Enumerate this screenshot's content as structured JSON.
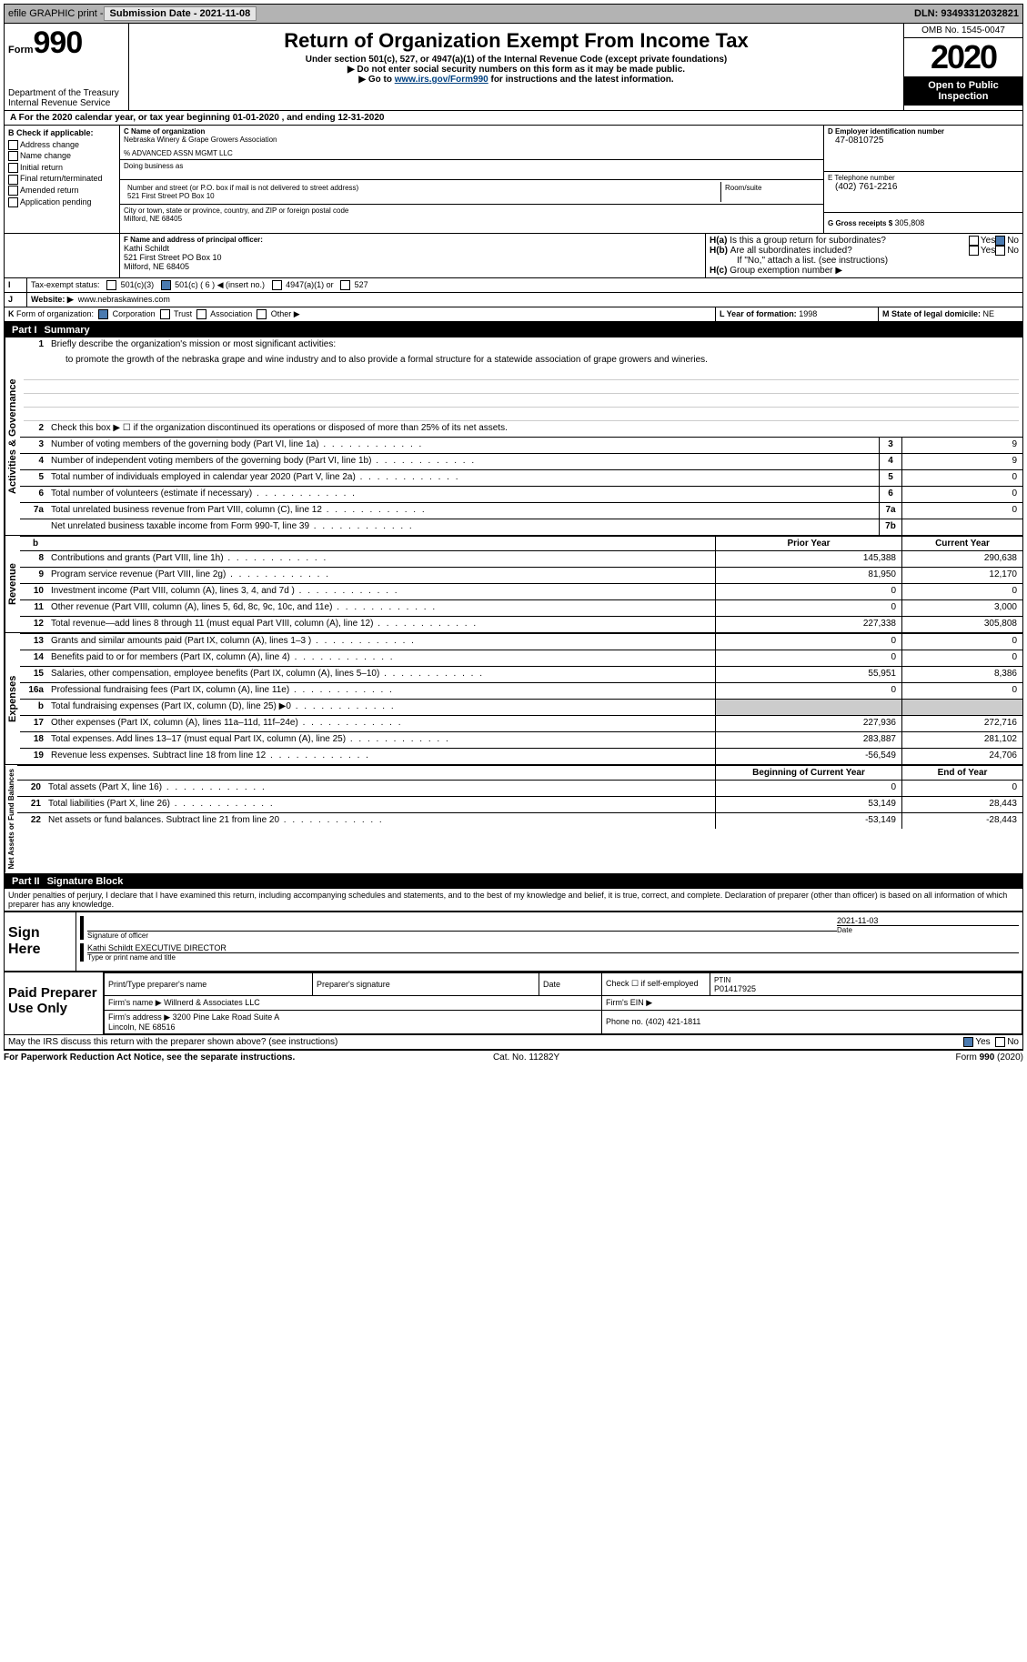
{
  "topbar": {
    "efile": "efile GRAPHIC print -",
    "submission": "Submission Date - 2021-11-08",
    "dln": "DLN: 93493312032821"
  },
  "header": {
    "form_word": "Form",
    "form_num": "990",
    "dept": "Department of the Treasury\nInternal Revenue Service",
    "title": "Return of Organization Exempt From Income Tax",
    "subtitle": "Under section 501(c), 527, or 4947(a)(1) of the Internal Revenue Code (except private foundations)",
    "note1": "▶ Do not enter social security numbers on this form as it may be made public.",
    "note2_pre": "▶ Go to ",
    "note2_link": "www.irs.gov/Form990",
    "note2_post": " for instructions and the latest information.",
    "omb": "OMB No. 1545-0047",
    "year": "2020",
    "open": "Open to Public Inspection"
  },
  "line_a": "For the 2020 calendar year, or tax year beginning 01-01-2020   , and ending 12-31-2020",
  "b": {
    "label": "B Check if applicable:",
    "opts": [
      "Address change",
      "Name change",
      "Initial return",
      "Final return/terminated",
      "Amended return",
      "Application pending"
    ]
  },
  "c": {
    "label": "C Name of organization",
    "name": "Nebraska Winery & Grape Growers Association",
    "care": "% ADVANCED ASSN MGMT LLC",
    "dba": "Doing business as",
    "street_label": "Number and street (or P.O. box if mail is not delivered to street address)",
    "street": "521 First Street PO Box 10",
    "room": "Room/suite",
    "city_label": "City or town, state or province, country, and ZIP or foreign postal code",
    "city": "Milford, NE  68405"
  },
  "d": {
    "label": "D Employer identification number",
    "val": "47-0810725"
  },
  "e": {
    "label": "E Telephone number",
    "val": "(402) 761-2216"
  },
  "g": {
    "label": "G Gross receipts $",
    "val": "305,808"
  },
  "f": {
    "label": "F  Name and address of principal officer:",
    "name": "Kathi Schildt",
    "addr1": "521 First Street PO Box 10",
    "addr2": "Milford, NE  68405"
  },
  "h": {
    "a": "Is this a group return for subordinates?",
    "b": "Are all subordinates included?",
    "b_note": "If \"No,\" attach a list. (see instructions)",
    "c": "Group exemption number ▶"
  },
  "i": {
    "label": "Tax-exempt status:",
    "opts": [
      "501(c)(3)",
      "501(c) ( 6 ) ◀ (insert no.)",
      "4947(a)(1) or",
      "527"
    ]
  },
  "j": {
    "label": "Website: ▶",
    "val": "www.nebraskawines.com"
  },
  "k": {
    "label": "Form of organization:",
    "opts": [
      "Corporation",
      "Trust",
      "Association",
      "Other ▶"
    ]
  },
  "l": {
    "label": "L Year of formation:",
    "val": "1998"
  },
  "m": {
    "label": "M State of legal domicile:",
    "val": "NE"
  },
  "part1": {
    "label": "Part I",
    "title": "Summary"
  },
  "summary": {
    "q1": "Briefly describe the organization's mission or most significant activities:",
    "mission": "to promote the growth of the nebraska grape and wine industry and to also provide a formal structure for a statewide association of grape growers and wineries.",
    "q2": "Check this box ▶ ☐  if the organization discontinued its operations or disposed of more than 25% of its net assets.",
    "lines": [
      {
        "n": "3",
        "d": "Number of voting members of the governing body (Part VI, line 1a)",
        "box": "3",
        "v": "9"
      },
      {
        "n": "4",
        "d": "Number of independent voting members of the governing body (Part VI, line 1b)",
        "box": "4",
        "v": "9"
      },
      {
        "n": "5",
        "d": "Total number of individuals employed in calendar year 2020 (Part V, line 2a)",
        "box": "5",
        "v": "0"
      },
      {
        "n": "6",
        "d": "Total number of volunteers (estimate if necessary)",
        "box": "6",
        "v": "0"
      },
      {
        "n": "7a",
        "d": "Total unrelated business revenue from Part VIII, column (C), line 12",
        "box": "7a",
        "v": "0"
      },
      {
        "n": "",
        "d": "Net unrelated business taxable income from Form 990-T, line 39",
        "box": "7b",
        "v": ""
      }
    ],
    "col_prior": "Prior Year",
    "col_curr": "Current Year",
    "col_begin": "Beginning of Current Year",
    "col_end": "End of Year",
    "rev": [
      {
        "n": "8",
        "d": "Contributions and grants (Part VIII, line 1h)",
        "p": "145,388",
        "c": "290,638"
      },
      {
        "n": "9",
        "d": "Program service revenue (Part VIII, line 2g)",
        "p": "81,950",
        "c": "12,170"
      },
      {
        "n": "10",
        "d": "Investment income (Part VIII, column (A), lines 3, 4, and 7d )",
        "p": "0",
        "c": "0"
      },
      {
        "n": "11",
        "d": "Other revenue (Part VIII, column (A), lines 5, 6d, 8c, 9c, 10c, and 11e)",
        "p": "0",
        "c": "3,000"
      },
      {
        "n": "12",
        "d": "Total revenue—add lines 8 through 11 (must equal Part VIII, column (A), line 12)",
        "p": "227,338",
        "c": "305,808"
      }
    ],
    "exp": [
      {
        "n": "13",
        "d": "Grants and similar amounts paid (Part IX, column (A), lines 1–3 )",
        "p": "0",
        "c": "0"
      },
      {
        "n": "14",
        "d": "Benefits paid to or for members (Part IX, column (A), line 4)",
        "p": "0",
        "c": "0"
      },
      {
        "n": "15",
        "d": "Salaries, other compensation, employee benefits (Part IX, column (A), lines 5–10)",
        "p": "55,951",
        "c": "8,386"
      },
      {
        "n": "16a",
        "d": "Professional fundraising fees (Part IX, column (A), line 11e)",
        "p": "0",
        "c": "0"
      },
      {
        "n": "b",
        "d": "Total fundraising expenses (Part IX, column (D), line 25) ▶0",
        "p": "grey",
        "c": "grey"
      },
      {
        "n": "17",
        "d": "Other expenses (Part IX, column (A), lines 11a–11d, 11f–24e)",
        "p": "227,936",
        "c": "272,716"
      },
      {
        "n": "18",
        "d": "Total expenses. Add lines 13–17 (must equal Part IX, column (A), line 25)",
        "p": "283,887",
        "c": "281,102"
      },
      {
        "n": "19",
        "d": "Revenue less expenses. Subtract line 18 from line 12",
        "p": "-56,549",
        "c": "24,706"
      }
    ],
    "net": [
      {
        "n": "20",
        "d": "Total assets (Part X, line 16)",
        "p": "0",
        "c": "0"
      },
      {
        "n": "21",
        "d": "Total liabilities (Part X, line 26)",
        "p": "53,149",
        "c": "28,443"
      },
      {
        "n": "22",
        "d": "Net assets or fund balances. Subtract line 21 from line 20",
        "p": "-53,149",
        "c": "-28,443"
      }
    ]
  },
  "sidebar": {
    "gov": "Activities & Governance",
    "rev": "Revenue",
    "exp": "Expenses",
    "net": "Net Assets or Fund Balances"
  },
  "part2": {
    "label": "Part II",
    "title": "Signature Block"
  },
  "sig": {
    "penalty": "Under penalties of perjury, I declare that I have examined this return, including accompanying schedules and statements, and to the best of my knowledge and belief, it is true, correct, and complete. Declaration of preparer (other than officer) is based on all information of which preparer has any knowledge.",
    "sign_here": "Sign Here",
    "sig_officer": "Signature of officer",
    "date": "Date",
    "sig_date": "2021-11-03",
    "name_title": "Kathi Schildt EXECUTIVE DIRECTOR",
    "type_name": "Type or print name and title",
    "paid": "Paid Preparer Use Only",
    "prep_name": "Print/Type preparer's name",
    "prep_sig": "Preparer's signature",
    "check_self": "Check ☐ if self-employed",
    "ptin_label": "PTIN",
    "ptin": "P01417925",
    "firm_name_label": "Firm's name    ▶",
    "firm_name": "Willnerd & Associates LLC",
    "firm_ein": "Firm's EIN ▶",
    "firm_addr_label": "Firm's address ▶",
    "firm_addr": "3200 Pine Lake Road Suite A\nLincoln, NE  68516",
    "phone_label": "Phone no.",
    "phone": "(402) 421-1811",
    "discuss": "May the IRS discuss this return with the preparer shown above? (see instructions)"
  },
  "footer": {
    "left": "For Paperwork Reduction Act Notice, see the separate instructions.",
    "mid": "Cat. No. 11282Y",
    "right": "Form 990 (2020)"
  }
}
